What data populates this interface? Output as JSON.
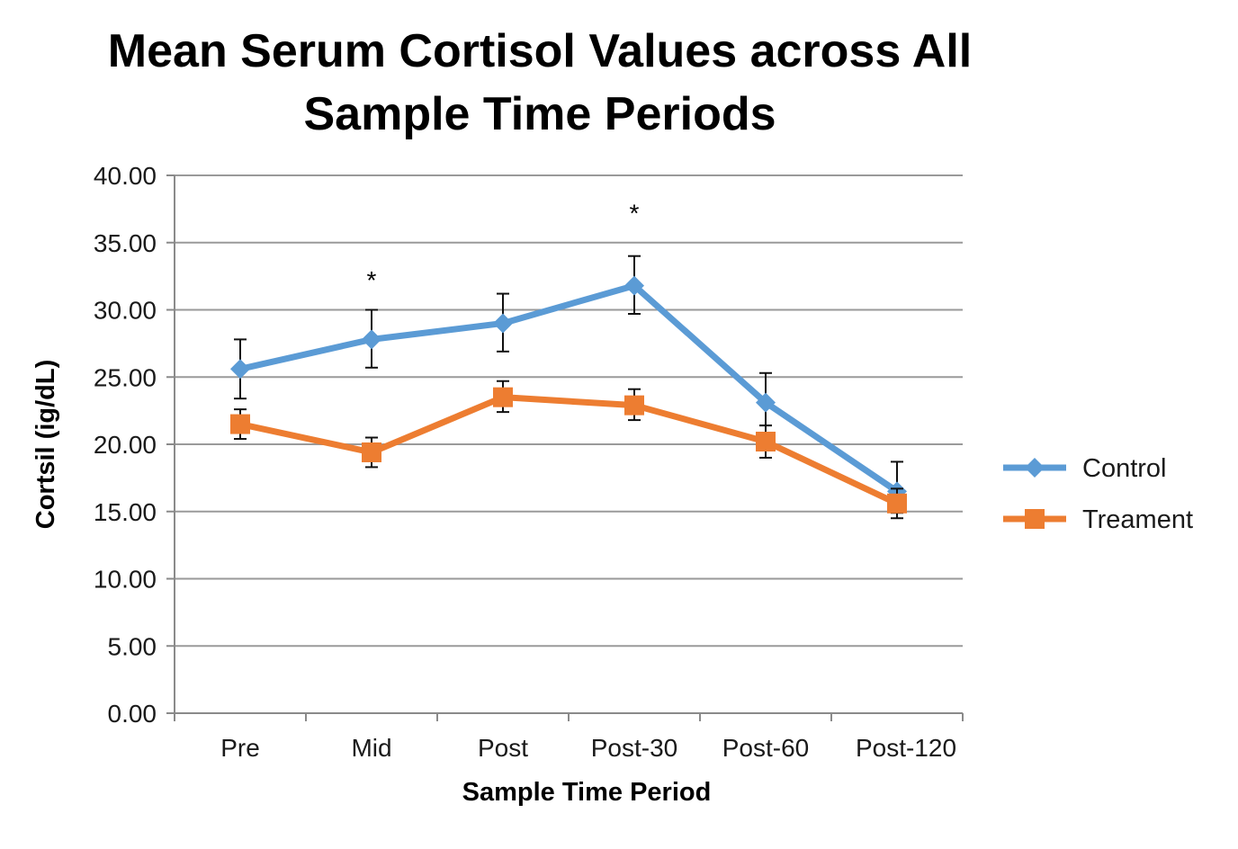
{
  "chart_data": {
    "type": "line",
    "title": [
      "Mean Serum Cortisol Values across All",
      "Sample Time Periods"
    ],
    "xlabel": "Sample Time Period",
    "ylabel": "Cortsil (ig/dL)",
    "categories": [
      "Pre",
      "Mid",
      "Post",
      "Post-30",
      "Post-60",
      "Post-120"
    ],
    "ylim": [
      0,
      40
    ],
    "yticks": [
      "0.00",
      "5.00",
      "10.00",
      "15.00",
      "20.00",
      "25.00",
      "30.00",
      "35.00",
      "40.00"
    ],
    "grid": true,
    "legend_position": "right",
    "series": [
      {
        "name": "Control",
        "color": "#5b9bd5",
        "marker": "diamond",
        "values": [
          25.6,
          27.8,
          29.0,
          31.8,
          23.1,
          16.5
        ],
        "err_upper": [
          2.2,
          2.2,
          2.2,
          2.2,
          2.2,
          2.2
        ],
        "err_lower": [
          2.2,
          2.1,
          2.1,
          2.1,
          1.7,
          1.6
        ]
      },
      {
        "name": "Treament",
        "color": "#ed7d31",
        "marker": "square",
        "values": [
          21.5,
          19.4,
          23.5,
          22.9,
          20.2,
          15.6
        ],
        "err_upper": [
          1.1,
          1.1,
          1.2,
          1.2,
          1.2,
          1.1
        ],
        "err_lower": [
          1.1,
          1.1,
          1.1,
          1.1,
          1.2,
          1.1
        ]
      }
    ],
    "annotations": [
      {
        "category": "Mid",
        "text": "*",
        "y": 32.5
      },
      {
        "category": "Post-30",
        "text": "*",
        "y": 37.5
      }
    ]
  }
}
